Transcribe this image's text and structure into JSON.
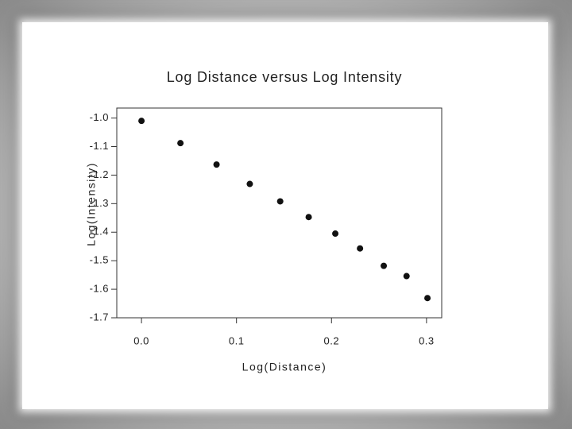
{
  "chart_data": {
    "type": "scatter",
    "title": "Log Distance versus Log Intensity",
    "x_label": "Log(Distance)",
    "y_label": "Log(Intensity)",
    "x": [
      0.0,
      0.041,
      0.079,
      0.114,
      0.146,
      0.176,
      0.204,
      0.23,
      0.255,
      0.279,
      0.301
    ],
    "values": [
      -1.01,
      -1.088,
      -1.163,
      -1.231,
      -1.292,
      -1.347,
      -1.405,
      -1.457,
      -1.518,
      -1.554,
      -1.631
    ],
    "color": "#111111",
    "xlim": [
      -0.026,
      0.316
    ],
    "ylim": [
      -1.7,
      -0.965
    ],
    "xticks": [
      {
        "value": 0,
        "label": "0.0"
      },
      0.1,
      0.2,
      0.3
    ],
    "yticks": [
      {
        "value": -1,
        "label": "-1.0"
      },
      -1.1,
      -1.2,
      -1.3,
      -1.4,
      -1.5,
      -1.6,
      -1.7
    ],
    "grid": false
  }
}
